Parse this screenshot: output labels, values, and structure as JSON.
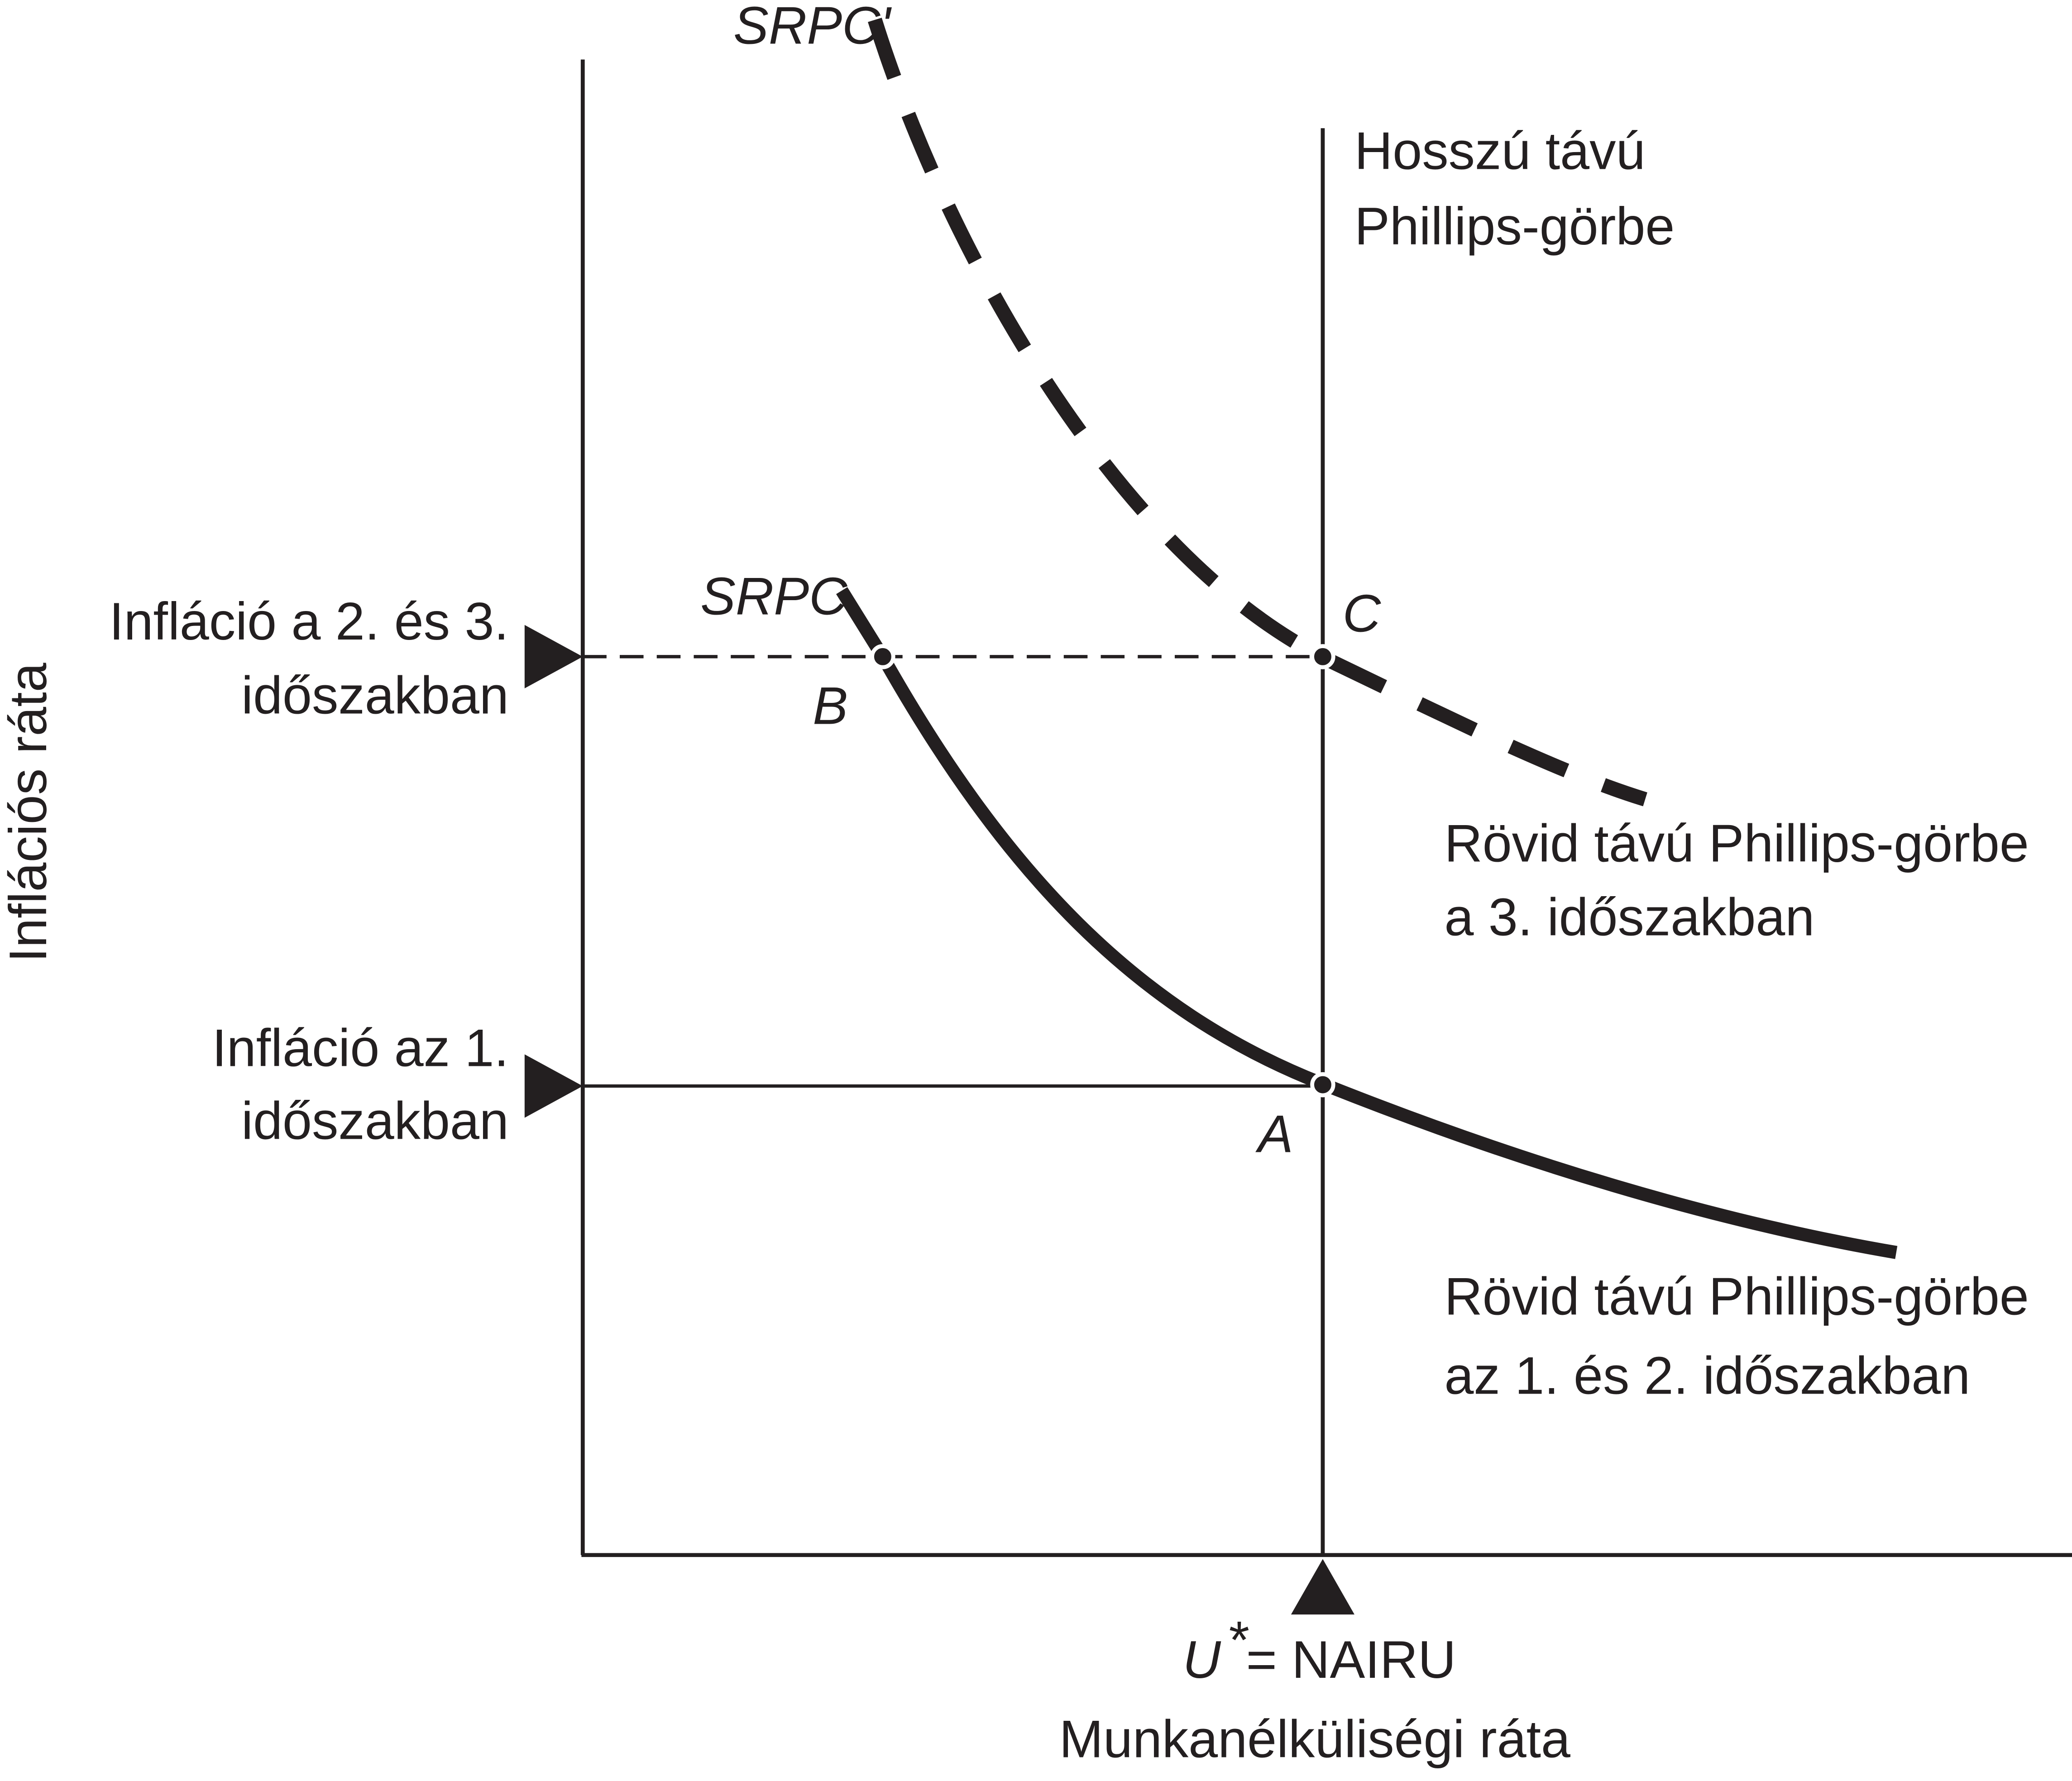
{
  "axes": {
    "y_label": "Inflációs ráta",
    "x_label": "Munkanélküliségi ráta"
  },
  "levels": [
    {
      "lines": [
        "Infláció a 2. és 3.",
        "időszakban"
      ]
    },
    {
      "lines": [
        "Infláció az 1.",
        "időszakban"
      ]
    }
  ],
  "nairu": {
    "symbol": "U",
    "star": "*",
    "text": "= NAIRU"
  },
  "long_run": {
    "lines": [
      "Hosszú távú",
      "Phillips-görbe"
    ]
  },
  "curves": [
    {
      "tag": "SRPC",
      "lines": [
        "Rövid távú Phillips-görbe",
        "az 1. és 2. időszakban"
      ]
    },
    {
      "tag": "SRPC'",
      "lines": [
        "Rövid távú Phillips-görbe",
        "a 3. időszakban"
      ]
    }
  ],
  "points": [
    "A",
    "B",
    "C"
  ]
}
